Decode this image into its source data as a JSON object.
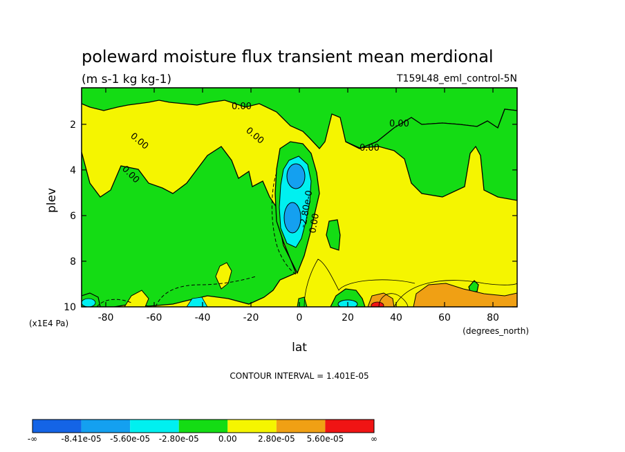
{
  "chart_data": {
    "type": "contour",
    "title": "poleward moisture flux transient mean merdional",
    "units": "(m s-1 kg kg-1)",
    "run_label": "T159L48_eml_control-5N",
    "xlabel": "lat",
    "x_units": "(degrees_north)",
    "ylabel": "plev",
    "y_units": "(x1E4 Pa)",
    "xlim": [
      -90,
      90
    ],
    "ylim": [
      0.4,
      10
    ],
    "y_inverted": true,
    "x_ticks": [
      -80,
      -60,
      -40,
      -20,
      0,
      20,
      40,
      60,
      80
    ],
    "y_ticks": [
      2,
      4,
      6,
      8,
      10
    ],
    "contour_interval_text": "CONTOUR INTERVAL = 1.401E-05",
    "contour_labels": [
      "0.00",
      "0.00",
      "0.00",
      "0.00",
      "0.00",
      "0.00",
      "0.00",
      "-2.80e-0"
    ],
    "colorbar": {
      "colors": [
        "#1464e6",
        "#14a0f0",
        "#00f0f0",
        "#14dc14",
        "#f5f500",
        "#f0a014",
        "#f01414"
      ],
      "labels": [
        "-∞",
        "-8.41e-05",
        "-5.60e-05",
        "-2.80e-05",
        "0.00",
        "2.80e-05",
        "5.60e-05",
        "∞"
      ]
    }
  }
}
